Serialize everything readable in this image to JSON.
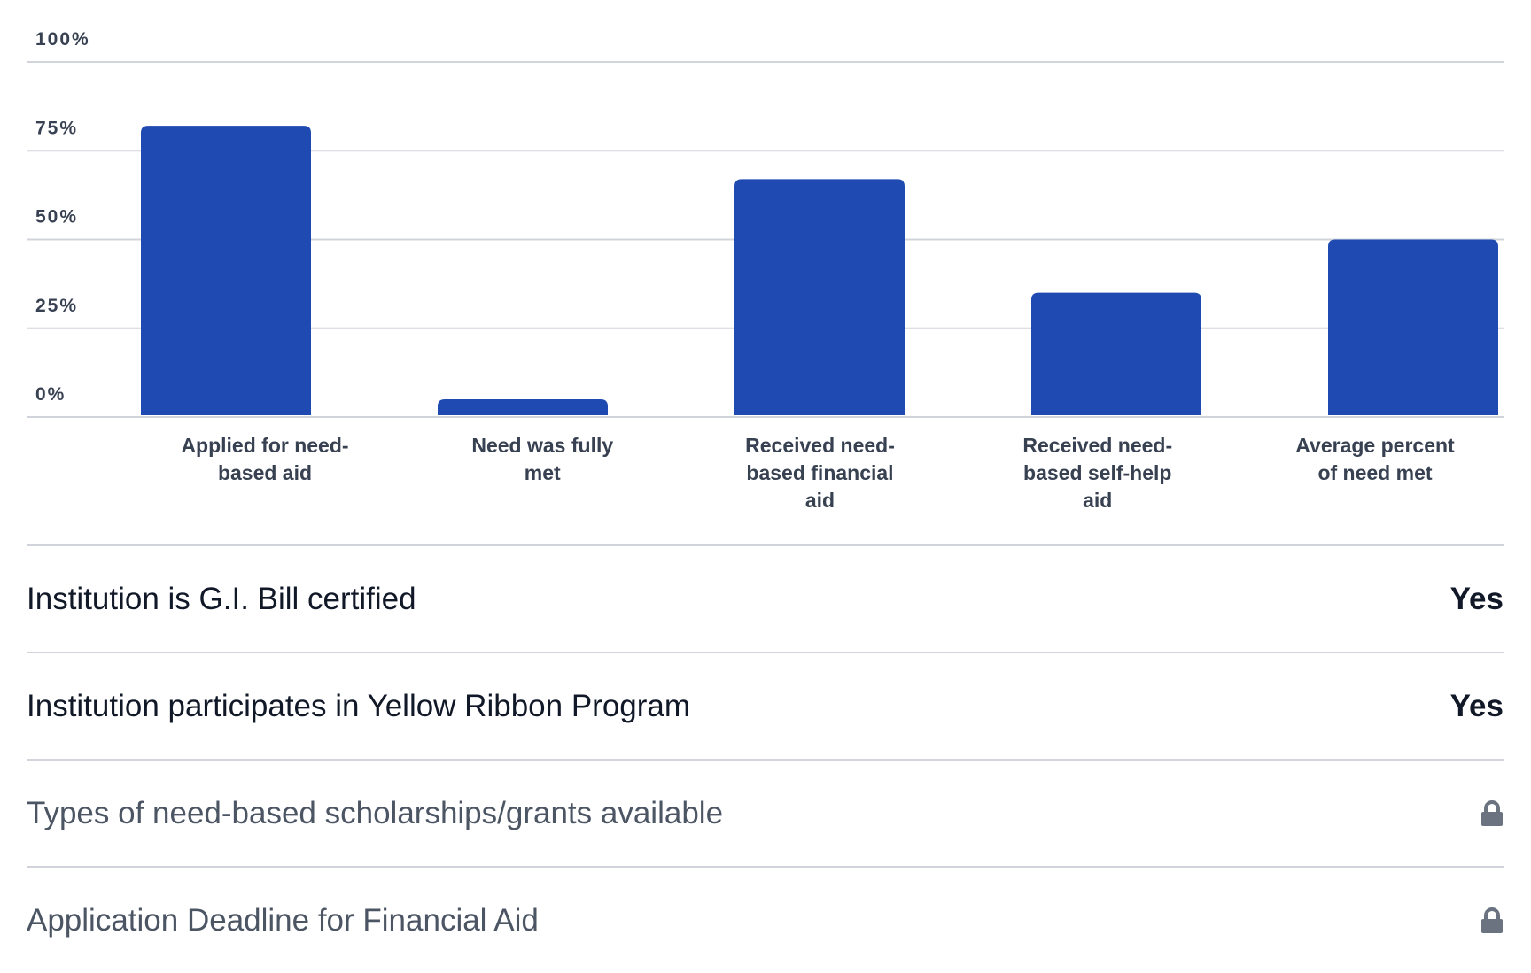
{
  "chart_data": {
    "type": "bar",
    "categories": [
      "Applied for need-based aid",
      "Need was fully met",
      "Received need-based financial aid",
      "Received need-based self-help aid",
      "Average percent of need met"
    ],
    "category_lines": [
      [
        "Applied for need-",
        "based aid"
      ],
      [
        "Need was fully",
        "met"
      ],
      [
        "Received need-",
        "based financial",
        "aid"
      ],
      [
        "Received need-",
        "based self-help",
        "aid"
      ],
      [
        "Average percent",
        "of need met"
      ]
    ],
    "values": [
      82,
      5,
      67,
      35,
      50
    ],
    "ylim": [
      0,
      100
    ],
    "yticks": [
      0,
      25,
      50,
      75,
      100
    ],
    "ytick_labels": [
      "0%",
      "25%",
      "50%",
      "75%",
      "100%"
    ],
    "grid": true,
    "bar_color": "#1f4ab1"
  },
  "rows": [
    {
      "label": "Institution is G.I. Bill certified",
      "value": "Yes"
    },
    {
      "label": "Institution participates in Yellow Ribbon Program",
      "value": "Yes"
    },
    {
      "label": "Types of need-based scholarships/grants available",
      "icon": "lock-icon"
    },
    {
      "label": "Application Deadline for Financial Aid",
      "icon": "lock-icon"
    }
  ]
}
